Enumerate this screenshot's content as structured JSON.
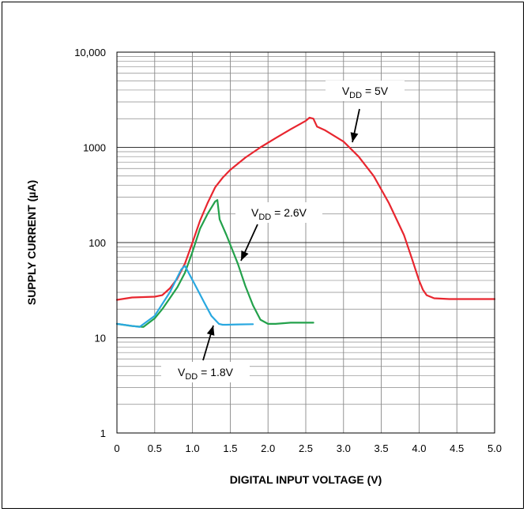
{
  "chart_data": {
    "type": "line",
    "xlabel": "DIGITAL INPUT VOLTAGE (V)",
    "ylabel": "SUPPLY CURRENT (µA)",
    "xlim": [
      0,
      5
    ],
    "ylim": [
      1,
      10000
    ],
    "yscale": "log",
    "grid": true,
    "x_ticks": [
      "0",
      "0.5",
      "1.0",
      "1.5",
      "2.0",
      "2.5",
      "3.0",
      "3.5",
      "4.0",
      "4.5",
      "5.0"
    ],
    "y_ticks": [
      "1",
      "10",
      "100",
      "1000",
      "10,000"
    ],
    "series": [
      {
        "name": "5V",
        "color": "#e8262f",
        "x": [
          0,
          0.2,
          0.5,
          0.6,
          0.7,
          0.8,
          0.9,
          1.0,
          1.1,
          1.2,
          1.3,
          1.4,
          1.5,
          1.7,
          1.9,
          2.1,
          2.3,
          2.5,
          2.55,
          2.6,
          2.65,
          2.75,
          3.0,
          3.2,
          3.4,
          3.6,
          3.8,
          3.9,
          4.0,
          4.05,
          4.1,
          4.2,
          4.4,
          4.6,
          4.8,
          5.0
        ],
        "y": [
          25,
          26.5,
          27,
          28,
          33,
          42,
          60,
          100,
          170,
          260,
          380,
          480,
          580,
          780,
          1000,
          1250,
          1550,
          1900,
          2050,
          2000,
          1650,
          1520,
          1150,
          800,
          500,
          260,
          120,
          70,
          40,
          32,
          28,
          26,
          25.5,
          25.5,
          25.5,
          25.5
        ]
      },
      {
        "name": "2.6V",
        "color": "#23a14b",
        "x": [
          0,
          0.2,
          0.35,
          0.5,
          0.6,
          0.7,
          0.8,
          0.9,
          1.0,
          1.1,
          1.2,
          1.3,
          1.33,
          1.36,
          1.45,
          1.6,
          1.7,
          1.8,
          1.9,
          2.0,
          2.1,
          2.3,
          2.6
        ],
        "y": [
          14,
          13.3,
          13,
          16,
          20,
          26,
          34,
          48,
          80,
          140,
          200,
          270,
          280,
          175,
          120,
          60,
          35,
          22,
          15.5,
          14,
          14,
          14.4,
          14.4
        ]
      },
      {
        "name": "1.8V",
        "color": "#29a8e0",
        "x": [
          0,
          0.15,
          0.3,
          0.5,
          0.7,
          0.85,
          0.9,
          0.95,
          1.05,
          1.15,
          1.25,
          1.35,
          1.4,
          1.45,
          1.6,
          1.8
        ],
        "y": [
          14,
          13.5,
          13,
          17,
          30,
          52,
          57,
          48,
          34,
          24,
          17,
          14,
          13.7,
          13.7,
          13.8,
          13.9
        ]
      }
    ],
    "annotations": [
      {
        "sub": "DD",
        "text": " = 5V",
        "series": "5V"
      },
      {
        "sub": "DD",
        "text": " = 2.6V",
        "series": "2.6V"
      },
      {
        "sub": "DD",
        "text": " = 1.8V",
        "series": "1.8V"
      }
    ]
  }
}
